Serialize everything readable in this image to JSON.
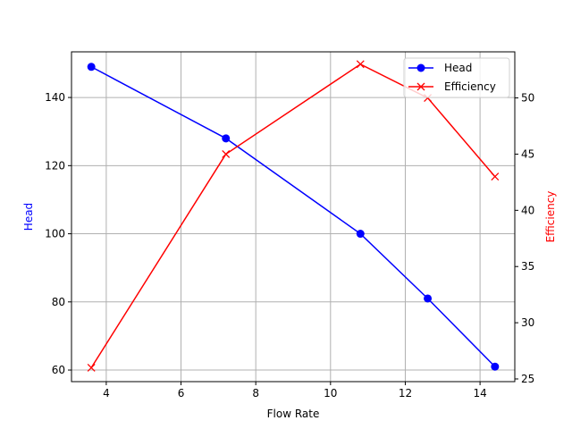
{
  "chart_data": {
    "type": "line",
    "title": "",
    "xlabel": "Flow Rate",
    "x": [
      3.6,
      7.2,
      10.8,
      12.6,
      14.4
    ],
    "xlim": [
      3.07,
      14.93
    ],
    "xticks": [
      4,
      6,
      8,
      10,
      12,
      14
    ],
    "grid": true,
    "legend_position": "upper right",
    "series": [
      {
        "name": "Head",
        "axis": "left",
        "color": "#0000ff",
        "marker": "o",
        "values": [
          149,
          128,
          100,
          81,
          61
        ]
      },
      {
        "name": "Efficiency",
        "axis": "right",
        "color": "#ff0000",
        "marker": "x",
        "values": [
          26,
          45,
          53,
          50,
          43
        ]
      }
    ],
    "y_left": {
      "label": "Head",
      "label_color": "#0000ff",
      "lim": [
        56.6,
        153.4
      ],
      "ticks": [
        60,
        80,
        100,
        120,
        140
      ]
    },
    "y_right": {
      "label": "Efficiency",
      "label_color": "#ff0000",
      "lim": [
        24.76,
        54.1
      ],
      "ticks": [
        25,
        30,
        35,
        40,
        45,
        50
      ]
    }
  }
}
